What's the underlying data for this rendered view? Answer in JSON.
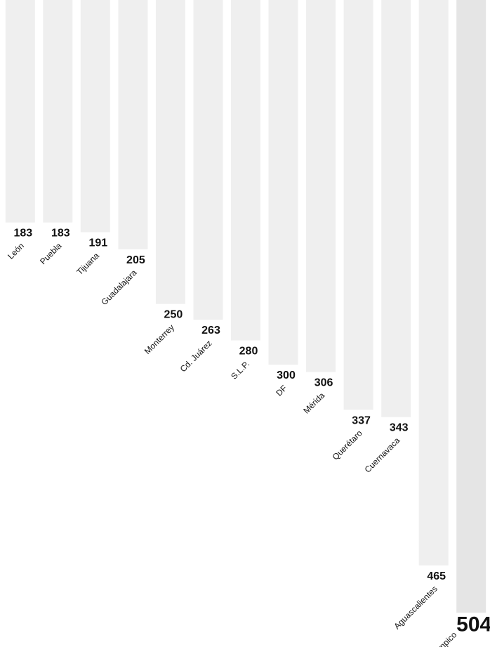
{
  "chart_data": {
    "type": "bar",
    "categories": [
      "León",
      "Puebla",
      "Tijuana",
      "Guadalajara",
      "Monterrey",
      "Cd. Juárez",
      "S.L.P.",
      "DF",
      "Mérida",
      "Querétaro",
      "Cuernavaca",
      "Aguascalientes",
      "Tampico"
    ],
    "values": [
      183,
      183,
      191,
      205,
      250,
      263,
      280,
      300,
      306,
      337,
      343,
      465,
      504
    ],
    "title": "",
    "xlabel": "",
    "ylabel": "",
    "ylim": [
      0,
      520
    ],
    "grid": false,
    "legend": "none",
    "colors": {
      "bar": "#dcdcdc",
      "bar_text": "#c8c8c8",
      "highlight": "#cfcfcf",
      "label": "#111111"
    }
  }
}
